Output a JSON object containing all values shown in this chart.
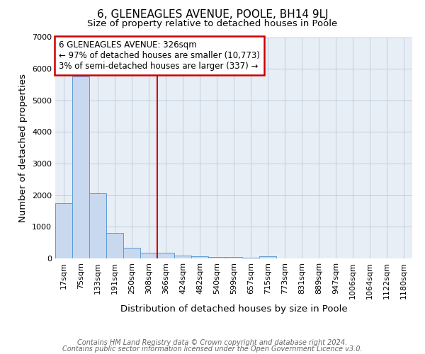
{
  "title": "6, GLENEAGLES AVENUE, POOLE, BH14 9LJ",
  "subtitle": "Size of property relative to detached houses in Poole",
  "xlabel": "Distribution of detached houses by size in Poole",
  "ylabel": "Number of detached properties",
  "bar_labels": [
    "17sqm",
    "75sqm",
    "133sqm",
    "191sqm",
    "250sqm",
    "308sqm",
    "366sqm",
    "424sqm",
    "482sqm",
    "540sqm",
    "599sqm",
    "657sqm",
    "715sqm",
    "773sqm",
    "831sqm",
    "889sqm",
    "947sqm",
    "1006sqm",
    "1064sqm",
    "1122sqm",
    "1180sqm"
  ],
  "bar_values": [
    1750,
    5750,
    2050,
    800,
    340,
    190,
    170,
    100,
    75,
    55,
    40,
    30,
    65,
    4,
    4,
    3,
    2,
    2,
    1,
    1,
    1
  ],
  "bar_color": "#c8d9ef",
  "bar_edgecolor": "#5b9bd5",
  "ylim": [
    0,
    7000
  ],
  "yticks": [
    0,
    1000,
    2000,
    3000,
    4000,
    5000,
    6000,
    7000
  ],
  "red_line_x": 5.5,
  "annotation_text": "6 GLENEAGLES AVENUE: 326sqm\n← 97% of detached houses are smaller (10,773)\n3% of semi-detached houses are larger (337) →",
  "footer_line1": "Contains HM Land Registry data © Crown copyright and database right 2024.",
  "footer_line2": "Contains public sector information licensed under the Open Government Licence v3.0.",
  "background_color": "#ffffff",
  "plot_bg_color": "#e8eef5",
  "grid_color": "#b8c8d8",
  "title_fontsize": 11,
  "subtitle_fontsize": 9.5,
  "axis_label_fontsize": 9.5,
  "tick_fontsize": 8,
  "annot_fontsize": 8.5,
  "footer_fontsize": 7
}
